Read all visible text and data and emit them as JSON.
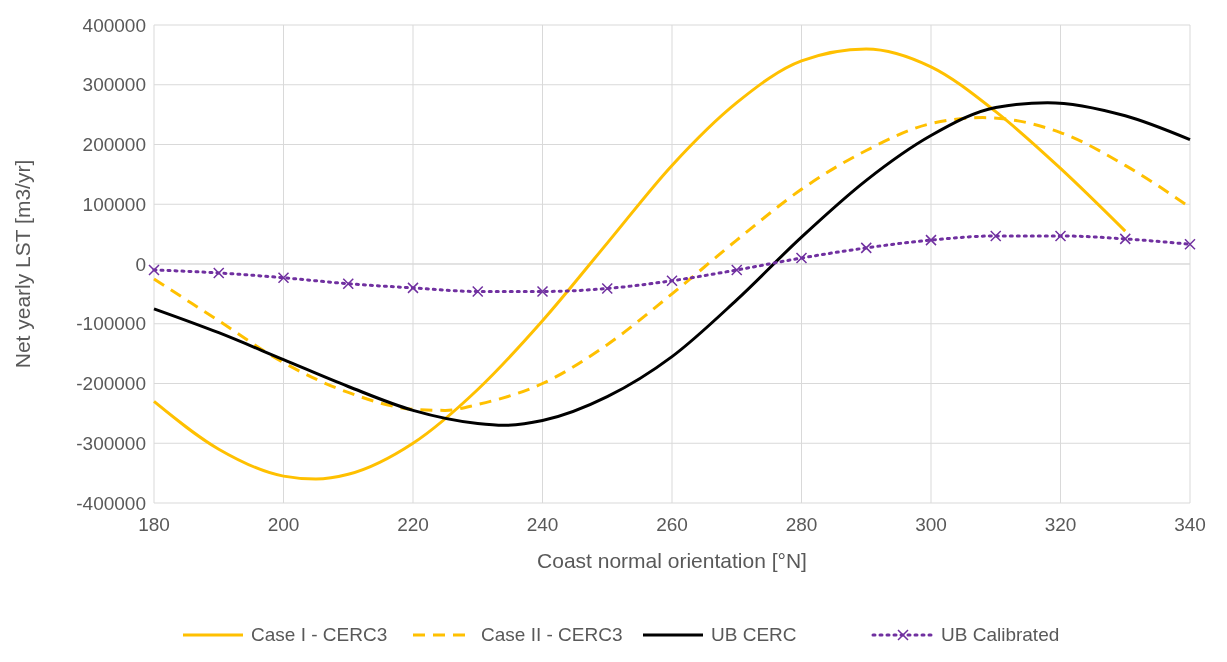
{
  "chart_data": {
    "type": "line",
    "xlabel": "Coast normal orientation [°N]",
    "ylabel": "Net yearly LST [m3/yr]",
    "xlim": [
      180,
      340
    ],
    "xticks": [
      180,
      200,
      220,
      240,
      260,
      280,
      300,
      320,
      340
    ],
    "ylim": [
      -400000,
      400000
    ],
    "yticks": [
      -400000,
      -300000,
      -200000,
      -100000,
      0,
      100000,
      200000,
      300000,
      400000
    ],
    "grid": true,
    "legend": "bottom",
    "series": [
      {
        "name": "Case I - CERC3",
        "color": "#ffc000",
        "line_style": "solid",
        "marker": "none",
        "x": [
          180,
          190,
          200,
          205,
          210,
          220,
          230,
          240,
          250,
          260,
          270,
          280,
          290,
          300,
          310,
          320,
          330
        ],
        "values": [
          -230000,
          -310000,
          -355000,
          -360000,
          -352000,
          -300000,
          -210000,
          -95000,
          35000,
          165000,
          270000,
          340000,
          360000,
          330000,
          255000,
          160000,
          55000
        ]
      },
      {
        "name": "Case II - CERC3",
        "color": "#ffc000",
        "line_style": "dashed",
        "marker": "none",
        "x": [
          180,
          190,
          200,
          210,
          220,
          225,
          230,
          240,
          250,
          260,
          270,
          280,
          290,
          300,
          308,
          320,
          330,
          340
        ],
        "values": [
          -25000,
          -95000,
          -165000,
          -215000,
          -243000,
          -245000,
          -235000,
          -200000,
          -135000,
          -50000,
          40000,
          125000,
          190000,
          235000,
          245000,
          220000,
          165000,
          95000
        ]
      },
      {
        "name": "UB CERC",
        "color": "#000000",
        "line_style": "solid",
        "marker": "none",
        "x": [
          180,
          190,
          200,
          210,
          220,
          230,
          234,
          240,
          250,
          260,
          270,
          280,
          290,
          300,
          310,
          318,
          330,
          340
        ],
        "values": [
          -75000,
          -115000,
          -160000,
          -205000,
          -245000,
          -267000,
          -270000,
          -262000,
          -222000,
          -155000,
          -60000,
          45000,
          140000,
          215000,
          262000,
          270000,
          248000,
          208000
        ]
      },
      {
        "name": "UB Calibrated",
        "color": "#7030a0",
        "line_style": "dotted",
        "marker": "cross",
        "x": [
          180,
          190,
          200,
          210,
          220,
          230,
          240,
          250,
          260,
          270,
          280,
          290,
          300,
          310,
          320,
          330,
          340
        ],
        "values": [
          -10000,
          -15000,
          -23000,
          -33000,
          -40000,
          -46000,
          -46000,
          -41000,
          -28000,
          -10000,
          10000,
          27000,
          40000,
          47000,
          47000,
          42000,
          33000
        ]
      }
    ]
  }
}
